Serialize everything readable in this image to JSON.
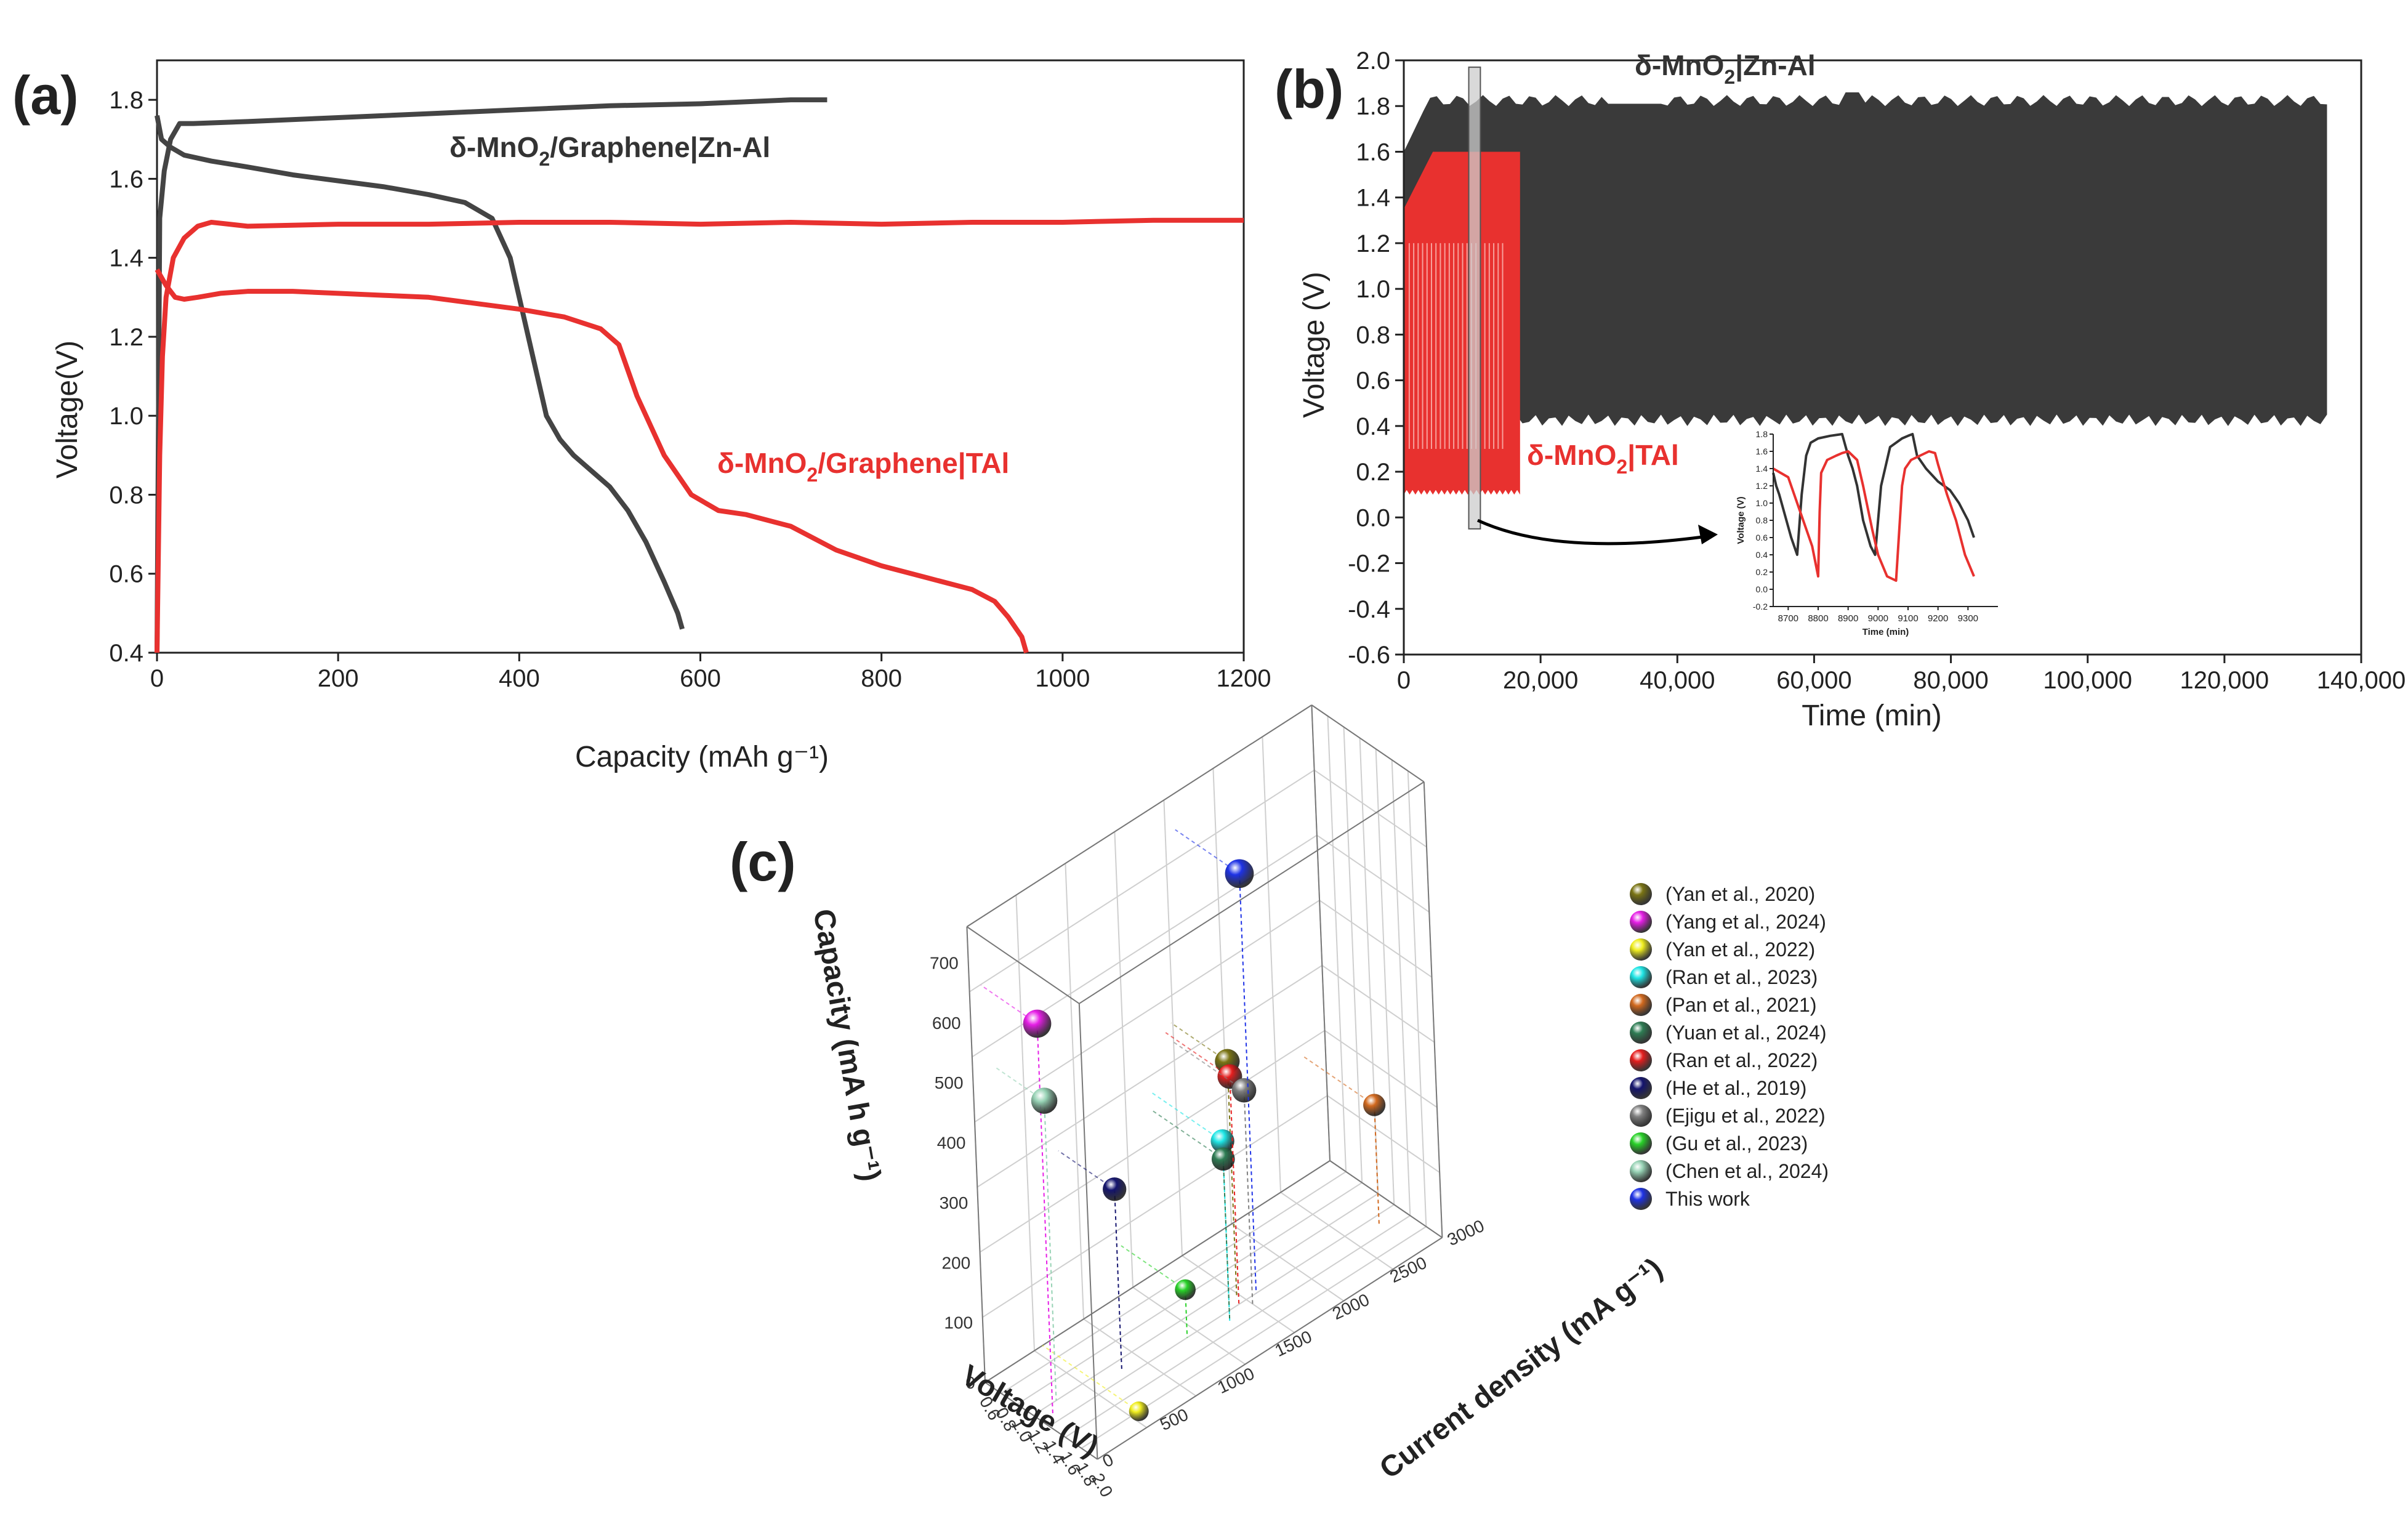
{
  "chart_data": [
    {
      "panel": "(a)",
      "type": "line",
      "xlabel": "Capacity (mAh g⁻¹)",
      "ylabel": "Voltage(V)",
      "xlim": [
        0,
        1200
      ],
      "ylim": [
        0.4,
        1.9
      ],
      "xticks": [
        0,
        200,
        400,
        600,
        800,
        1000,
        1200
      ],
      "yticks": [
        0.4,
        0.6,
        0.8,
        1.0,
        1.2,
        1.4,
        1.6,
        1.8
      ],
      "annotations": [
        {
          "text": "δ-MnO",
          "sub": "2",
          "rest": "/Graphene|Zn-Al",
          "color": "#333333"
        },
        {
          "text": "δ-MnO",
          "sub": "2",
          "rest": "/Graphene|TAl",
          "color": "#e8312f"
        }
      ],
      "series": [
        {
          "name": "Zn-Al charge",
          "color": "#444444",
          "x": [
            0,
            3,
            8,
            15,
            25,
            40,
            100,
            200,
            300,
            400,
            500,
            600,
            700,
            740
          ],
          "y": [
            0.4,
            1.5,
            1.62,
            1.7,
            1.74,
            1.74,
            1.745,
            1.755,
            1.765,
            1.775,
            1.785,
            1.79,
            1.8,
            1.8
          ]
        },
        {
          "name": "Zn-Al discharge",
          "color": "#444444",
          "x": [
            0,
            5,
            15,
            30,
            60,
            100,
            150,
            200,
            250,
            300,
            340,
            370,
            390,
            410,
            430,
            445,
            460,
            480,
            500,
            520,
            540,
            560,
            575,
            580
          ],
          "y": [
            1.76,
            1.7,
            1.68,
            1.66,
            1.645,
            1.63,
            1.61,
            1.595,
            1.58,
            1.56,
            1.54,
            1.5,
            1.4,
            1.2,
            1.0,
            0.94,
            0.9,
            0.86,
            0.82,
            0.76,
            0.68,
            0.58,
            0.5,
            0.46
          ]
        },
        {
          "name": "TAl charge",
          "color": "#e8312f",
          "x": [
            0,
            3,
            6,
            10,
            18,
            30,
            45,
            60,
            80,
            100,
            200,
            300,
            400,
            500,
            600,
            700,
            800,
            900,
            1000,
            1100,
            1200
          ],
          "y": [
            0.4,
            0.9,
            1.15,
            1.3,
            1.4,
            1.45,
            1.48,
            1.49,
            1.485,
            1.48,
            1.485,
            1.485,
            1.49,
            1.49,
            1.485,
            1.49,
            1.485,
            1.49,
            1.49,
            1.495,
            1.495
          ]
        },
        {
          "name": "TAl discharge",
          "color": "#e8312f",
          "x": [
            0,
            10,
            20,
            30,
            45,
            70,
            100,
            150,
            200,
            250,
            300,
            350,
            400,
            450,
            490,
            510,
            530,
            560,
            590,
            620,
            650,
            700,
            750,
            800,
            850,
            900,
            925,
            940,
            955,
            960
          ],
          "y": [
            1.37,
            1.33,
            1.3,
            1.295,
            1.3,
            1.31,
            1.315,
            1.315,
            1.31,
            1.305,
            1.3,
            1.285,
            1.27,
            1.25,
            1.22,
            1.18,
            1.05,
            0.9,
            0.8,
            0.76,
            0.75,
            0.72,
            0.66,
            0.62,
            0.59,
            0.56,
            0.53,
            0.49,
            0.44,
            0.4
          ]
        }
      ]
    },
    {
      "panel": "(b)",
      "type": "line",
      "xlabel": "Time (min)",
      "ylabel": "Voltage (V)",
      "xlim": [
        0,
        140000
      ],
      "ylim": [
        -0.6,
        2.0
      ],
      "xticks": [
        0,
        20000,
        40000,
        60000,
        80000,
        100000,
        120000,
        140000
      ],
      "xtick_labels": [
        "0",
        "20,000",
        "40,000",
        "60,000",
        "80,000",
        "100,000",
        "120,000",
        "140,000"
      ],
      "yticks": [
        -0.6,
        -0.4,
        -0.2,
        0.0,
        0.2,
        0.4,
        0.6,
        0.8,
        1.0,
        1.2,
        1.4,
        1.6,
        1.8,
        2.0
      ],
      "annotations": [
        {
          "text": "δ-MnO",
          "sub": "2",
          "rest": "|Zn-Al",
          "color": "#333333"
        },
        {
          "text": "δ-MnO",
          "sub": "2",
          "rest": "|TAl",
          "color": "#e8312f"
        }
      ],
      "series": [
        {
          "name": "δ-MnO2|Zn-Al cycling",
          "color": "#3a3a3a",
          "time_range": [
            0,
            135000
          ],
          "upper_voltage": [
            1.8,
            1.88
          ],
          "lower_voltage": [
            0.4,
            0.45
          ]
        },
        {
          "name": "δ-MnO2|TAl cycling",
          "color": "#e8312f",
          "time_range": [
            0,
            17000
          ],
          "upper_voltage": [
            1.35,
            1.6
          ],
          "lower_voltage": [
            0.1,
            0.12
          ]
        }
      ],
      "highlight_window": [
        9500,
        11200
      ],
      "inset": {
        "xlabel": "Time (min)",
        "ylabel": "Voltage (V)",
        "xlim": [
          8650,
          9400
        ],
        "ylim": [
          -0.2,
          1.8
        ],
        "xticks": [
          8700,
          8800,
          8900,
          9000,
          9100,
          9200,
          9300
        ],
        "yticks": [
          -0.2,
          0.0,
          0.2,
          0.4,
          0.6,
          0.8,
          1.0,
          1.2,
          1.4,
          1.6,
          1.8
        ],
        "series": [
          {
            "name": "Zn-Al",
            "color": "#333333",
            "x": [
              8650,
              8660,
              8670,
              8690,
              8710,
              8730,
              8745,
              8760,
              8775,
              8800,
              8840,
              8880,
              8900,
              8915,
              8930,
              8950,
              8975,
              8990,
              9010,
              9040,
              9080,
              9100,
              9115,
              9130,
              9160,
              9200,
              9240,
              9270,
              9300,
              9320
            ],
            "y": [
              1.35,
              1.2,
              1.1,
              0.85,
              0.6,
              0.4,
              1.1,
              1.55,
              1.7,
              1.75,
              1.78,
              1.8,
              1.55,
              1.4,
              1.2,
              0.8,
              0.5,
              0.4,
              1.2,
              1.65,
              1.75,
              1.78,
              1.8,
              1.55,
              1.4,
              1.25,
              1.15,
              1.0,
              0.8,
              0.6
            ]
          },
          {
            "name": "TAl",
            "color": "#e8312f",
            "x": [
              8650,
              8700,
              8720,
              8740,
              8760,
              8780,
              8800,
              8805,
              8810,
              8830,
              8860,
              8880,
              8900,
              8930,
              8950,
              8980,
              9000,
              9030,
              9060,
              9080,
              9090,
              9110,
              9140,
              9170,
              9190,
              9200,
              9230,
              9260,
              9290,
              9320
            ],
            "y": [
              1.4,
              1.3,
              1.1,
              0.9,
              0.7,
              0.5,
              0.15,
              0.9,
              1.35,
              1.5,
              1.55,
              1.58,
              1.6,
              1.5,
              1.2,
              0.7,
              0.4,
              0.15,
              0.1,
              1.2,
              1.4,
              1.5,
              1.55,
              1.6,
              1.58,
              1.45,
              1.1,
              0.8,
              0.4,
              0.15
            ]
          }
        ]
      }
    },
    {
      "panel": "(c)",
      "type": "scatter",
      "xlabel": "Voltage (V)",
      "ylabel": "Current density (mA g⁻¹)",
      "zlabel": "Capacity (mA h g⁻¹)",
      "xlim": [
        0.6,
        2.0
      ],
      "ylim": [
        0,
        3000
      ],
      "zlim": [
        0,
        700
      ],
      "xticks": [
        0.6,
        0.8,
        1.0,
        1.2,
        1.4,
        1.6,
        1.8,
        2.0
      ],
      "yticks": [
        0,
        500,
        1000,
        1500,
        2000,
        2500,
        3000
      ],
      "zticks": [
        0,
        100,
        200,
        300,
        400,
        500,
        600,
        700
      ],
      "points": [
        {
          "label": "(Yan et al., 2020)",
          "color": "#7a7414",
          "x": 1.3,
          "y": 1700,
          "z": 390
        },
        {
          "label": "(Yang et al., 2024)",
          "color": "#e61ee6",
          "x": 1.3,
          "y": 100,
          "z": 650
        },
        {
          "label": "(Yan et al., 2022)",
          "color": "#f0ee1e",
          "x": 1.8,
          "y": 500,
          "z": 0
        },
        {
          "label": "(Ran et al., 2023)",
          "color": "#1ee6e6",
          "x": 1.5,
          "y": 1500,
          "z": 300
        },
        {
          "label": "(Pan et al., 2021)",
          "color": "#d2691e",
          "x": 1.5,
          "y": 2800,
          "z": 200
        },
        {
          "label": "(Yuan et al., 2024)",
          "color": "#2e7d54",
          "x": 1.5,
          "y": 1500,
          "z": 270
        },
        {
          "label": "(Ran et al., 2022)",
          "color": "#e61e1e",
          "x": 1.4,
          "y": 1650,
          "z": 380
        },
        {
          "label": "(He et al., 2019)",
          "color": "#14146e",
          "x": 1.3,
          "y": 700,
          "z": 300
        },
        {
          "label": "(Ejigu et al., 2022)",
          "color": "#808080",
          "x": 1.5,
          "y": 1700,
          "z": 360
        },
        {
          "label": "(Gu et al., 2023)",
          "color": "#28d228",
          "x": 1.4,
          "y": 1200,
          "z": 80
        },
        {
          "label": "(Chen et al., 2024)",
          "color": "#96d2b4",
          "x": 1.2,
          "y": 200,
          "z": 500
        },
        {
          "label": "This work",
          "color": "#1e32e6",
          "x": 1.4,
          "y": 1800,
          "z": 700
        }
      ]
    }
  ]
}
